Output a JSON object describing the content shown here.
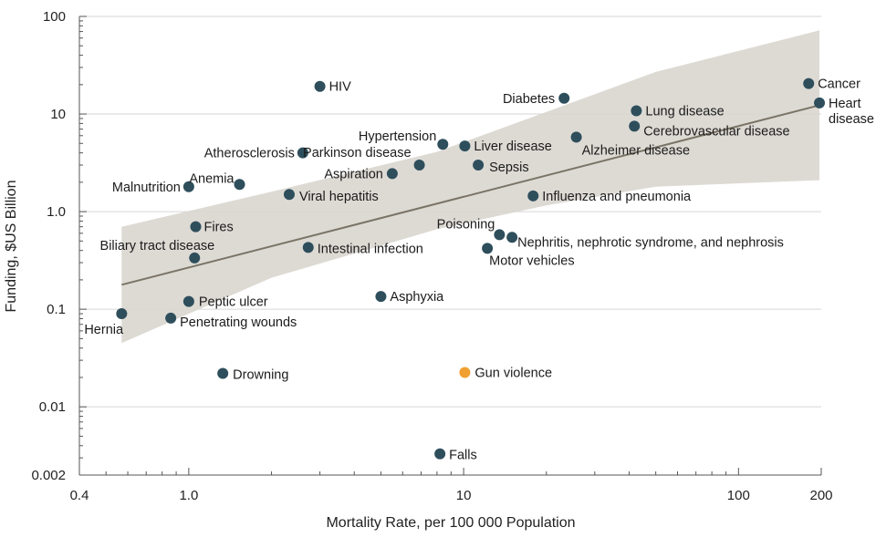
{
  "chart_data": {
    "type": "scatter",
    "xlabel": "Mortality Rate, per 100 000 Population",
    "ylabel": "Funding, $US Billion",
    "x_scale": "log",
    "y_scale": "log",
    "xlim": [
      0.4,
      200
    ],
    "ylim": [
      0.002,
      100
    ],
    "grid": "horizontal",
    "x_ticks": [
      {
        "value": 0.4,
        "label": "0.4"
      },
      {
        "value": 1,
        "label": "1.0"
      },
      {
        "value": 10,
        "label": "10"
      },
      {
        "value": 100,
        "label": "100"
      },
      {
        "value": 200,
        "label": "200"
      }
    ],
    "y_ticks": [
      {
        "value": 100,
        "label": "100"
      },
      {
        "value": 10,
        "label": "10"
      },
      {
        "value": 1,
        "label": "1.0"
      },
      {
        "value": 0.1,
        "label": "0.1"
      },
      {
        "value": 0.01,
        "label": "0.01"
      },
      {
        "value": 0.002,
        "label": "0.002"
      }
    ],
    "colors": {
      "point": "#2e4e5c",
      "highlight": "#f0a030",
      "trend": "#7a7466",
      "band": "#d9d6cf",
      "grid": "#d6d6d6",
      "axis": "#555555"
    },
    "trend_line": {
      "x": [
        0.57,
        197
      ],
      "y": [
        0.178,
        12.3
      ]
    },
    "confidence_band": {
      "x": [
        0.57,
        2,
        8,
        20,
        50,
        197
      ],
      "upper": [
        0.7,
        1.6,
        4.1,
        10.5,
        27,
        72
      ],
      "lower": [
        0.045,
        0.21,
        0.66,
        1.16,
        1.8,
        2.1
      ]
    },
    "points": [
      {
        "name": "Cancer",
        "x": 180,
        "y": 20.5
      },
      {
        "name": "Heart",
        "name2": "disease",
        "x": 197,
        "y": 13
      },
      {
        "name": "Diabetes",
        "x": 23.2,
        "y": 14.5
      },
      {
        "name": "Lung disease",
        "x": 42.5,
        "y": 10.8
      },
      {
        "name": "Cerebrovascular disease",
        "x": 41.8,
        "y": 7.5
      },
      {
        "name": "Alzheimer disease",
        "x": 25.7,
        "y": 5.8
      },
      {
        "name": "HIV",
        "x": 3.0,
        "y": 19.2
      },
      {
        "name": "Hypertension",
        "x": 8.4,
        "y": 4.9
      },
      {
        "name": "Liver disease",
        "x": 10.1,
        "y": 4.7
      },
      {
        "name": "Atherosclerosis",
        "x": 2.6,
        "y": 4.0
      },
      {
        "name": "Parkinson disease",
        "x": 6.9,
        "y": 3.0
      },
      {
        "name": "Aspiration",
        "x": 5.5,
        "y": 2.45
      },
      {
        "name": "Sepsis",
        "x": 11.3,
        "y": 3.0
      },
      {
        "name": "Anemia",
        "x": 1.53,
        "y": 1.9
      },
      {
        "name": "Malnutrition",
        "x": 1.0,
        "y": 1.8
      },
      {
        "name": "Viral hepatitis",
        "x": 2.32,
        "y": 1.5
      },
      {
        "name": "Influenza and pneumonia",
        "x": 17.9,
        "y": 1.45
      },
      {
        "name": "Fires",
        "x": 1.06,
        "y": 0.7
      },
      {
        "name": "Biliary tract disease",
        "x": 1.05,
        "y": 0.335
      },
      {
        "name": "Intestinal infection",
        "x": 2.72,
        "y": 0.43
      },
      {
        "name": "Poisoning",
        "x": 13.5,
        "y": 0.58
      },
      {
        "name": "Nephritis, nephrotic syndrome, and nephrosis",
        "x": 15.0,
        "y": 0.545
      },
      {
        "name": "Motor vehicles",
        "x": 12.2,
        "y": 0.42
      },
      {
        "name": "Asphyxia",
        "x": 5.0,
        "y": 0.135
      },
      {
        "name": "Peptic ulcer",
        "x": 1.0,
        "y": 0.12
      },
      {
        "name": "Hernia",
        "x": 0.57,
        "y": 0.09
      },
      {
        "name": "Penetrating wounds",
        "x": 0.86,
        "y": 0.081
      },
      {
        "name": "Drowning",
        "x": 1.33,
        "y": 0.022
      },
      {
        "name": "Gun violence",
        "x": 10.1,
        "y": 0.0225,
        "highlight": true
      },
      {
        "name": "Falls",
        "x": 8.2,
        "y": 0.0033
      }
    ]
  }
}
